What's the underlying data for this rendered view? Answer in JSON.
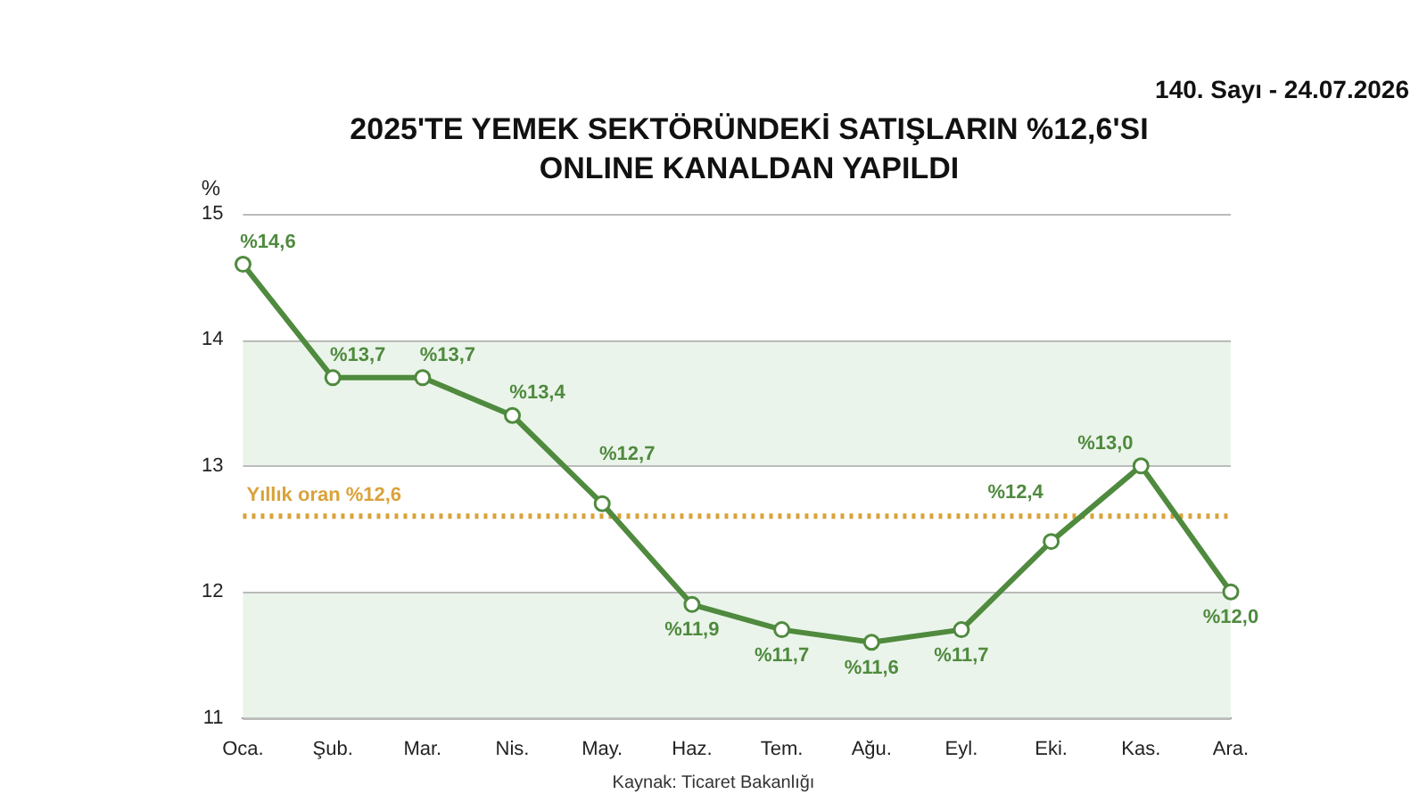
{
  "chart_data": {
    "type": "line",
    "title": "2025'TE YEMEK SEKTÖRÜNDEKİ SATIŞLARIN %12,6'SI ONLINE KANALDAN YAPILDI",
    "ylabel": "%",
    "categories": [
      "Oca.",
      "Şub.",
      "Mar.",
      "Nis.",
      "May.",
      "Haz.",
      "Tem.",
      "Ağu.",
      "Eyl.",
      "Eki.",
      "Kas.",
      "Ara."
    ],
    "series": [
      {
        "color": "#4f8a3e",
        "values": [
          14.6,
          13.7,
          13.7,
          13.4,
          12.7,
          11.9,
          11.7,
          11.6,
          11.7,
          12.4,
          13.0,
          12.0
        ],
        "value_labels": [
          "%14,6",
          "%13,7",
          "%13,7",
          "%13,4",
          "%12,7",
          "%11,9",
          "%11,7",
          "%11,6",
          "%11,7",
          "%12,4",
          "%13,0",
          "%12,0"
        ]
      }
    ],
    "ylim": [
      11,
      15
    ],
    "yticks": [
      11,
      12,
      13,
      14,
      15
    ],
    "grid": "y",
    "marker": "circle",
    "line_style": "solid",
    "legend": false,
    "ref_lines": [
      {
        "axis": "y",
        "value": 12.6,
        "label": "Yıllık oran %12,6",
        "color": "#d9a23a",
        "line_style": "dotted"
      }
    ],
    "bands": [
      {
        "axis": "y",
        "from": 11,
        "to": 12,
        "color": "#eaf4ea"
      },
      {
        "axis": "y",
        "from": 13,
        "to": 14,
        "color": "#eaf4ea"
      }
    ],
    "annotations": [
      "Kaynak: Ticaret Bakanlığı",
      "140. Sayı - 24.07.2026"
    ]
  }
}
